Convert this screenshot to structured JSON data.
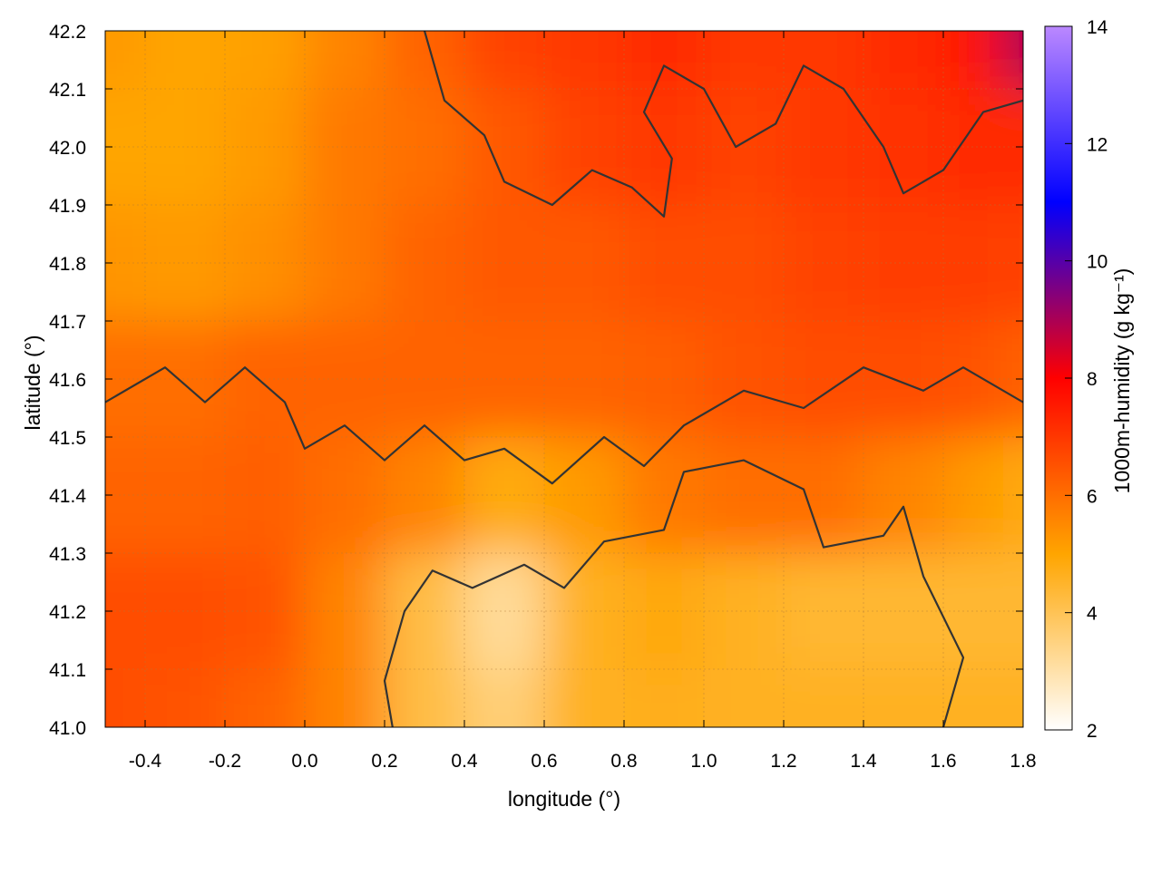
{
  "chart_data": {
    "type": "heatmap",
    "title": "",
    "xlabel": "longitude (°)",
    "ylabel": "latitude (°)",
    "colorbar_label": "1000m-humidity (g kg⁻¹)",
    "xlim": [
      -0.5,
      1.8
    ],
    "ylim": [
      41.0,
      42.2
    ],
    "zlim": [
      2,
      14
    ],
    "x_ticks": [
      -0.4,
      -0.2,
      0.0,
      0.2,
      0.4,
      0.6,
      0.8,
      1.0,
      1.2,
      1.4,
      1.6,
      1.8
    ],
    "x_tick_labels": [
      "-0.4",
      "-0.2",
      "0.0",
      "0.2",
      "0.4",
      "0.6",
      "0.8",
      "1.0",
      "1.2",
      "1.4",
      "1.6",
      "1.8"
    ],
    "y_ticks": [
      41.0,
      41.1,
      41.2,
      41.3,
      41.4,
      41.5,
      41.6,
      41.7,
      41.8,
      41.9,
      42.0,
      42.1,
      42.2
    ],
    "y_tick_labels": [
      "41.0",
      "41.1",
      "41.2",
      "41.3",
      "41.4",
      "41.5",
      "41.6",
      "41.7",
      "41.8",
      "41.9",
      "42.0",
      "42.1",
      "42.2"
    ],
    "colorbar_ticks": [
      2,
      4,
      6,
      8,
      10,
      12,
      14
    ],
    "colorbar_tick_labels": [
      "2",
      "4",
      "6",
      "8",
      "10",
      "12",
      "14"
    ],
    "colormap": [
      "#ffffff",
      "#ffa500",
      "#ff0000",
      "#0000ff",
      "#bb88ff"
    ],
    "contour_color": "#333333",
    "grid": true,
    "field_samples": {
      "x": [
        -0.5,
        -0.3,
        -0.1,
        0.1,
        0.3,
        0.5,
        0.7,
        0.9,
        1.1,
        1.3,
        1.5,
        1.7,
        1.8
      ],
      "y": [
        42.2,
        42.0,
        41.8,
        41.6,
        41.4,
        41.2,
        41.0
      ],
      "z": [
        [
          5.2,
          5.0,
          5.1,
          5.6,
          6.2,
          6.8,
          7.0,
          7.2,
          7.0,
          7.0,
          7.2,
          7.6,
          9.0
        ],
        [
          5.0,
          5.0,
          5.2,
          5.8,
          6.0,
          6.4,
          6.8,
          7.0,
          6.8,
          7.0,
          7.1,
          7.2,
          7.2
        ],
        [
          5.3,
          5.2,
          5.4,
          5.8,
          6.2,
          6.4,
          6.4,
          6.6,
          6.6,
          6.8,
          6.9,
          6.9,
          6.8
        ],
        [
          6.0,
          6.0,
          6.2,
          6.2,
          6.2,
          6.2,
          6.2,
          6.3,
          6.5,
          6.6,
          6.6,
          6.5,
          6.2
        ],
        [
          6.2,
          6.2,
          6.3,
          6.0,
          5.6,
          4.8,
          5.2,
          5.8,
          6.0,
          6.0,
          5.6,
          5.2,
          4.8
        ],
        [
          6.6,
          6.6,
          6.5,
          5.6,
          4.2,
          3.2,
          4.6,
          4.9,
          4.6,
          4.4,
          4.4,
          4.4,
          4.4
        ],
        [
          6.6,
          6.5,
          6.2,
          5.6,
          4.2,
          3.6,
          4.6,
          4.7,
          4.6,
          4.6,
          4.6,
          4.6,
          4.6
        ]
      ]
    },
    "contour_levels": [
      {
        "level": 5,
        "path": [
          [
            1.6,
            41.0
          ],
          [
            1.65,
            41.12
          ],
          [
            1.55,
            41.26
          ],
          [
            1.5,
            41.38
          ],
          [
            1.45,
            41.33
          ],
          [
            1.3,
            41.31
          ],
          [
            1.25,
            41.41
          ],
          [
            1.1,
            41.46
          ],
          [
            0.95,
            41.44
          ],
          [
            0.9,
            41.34
          ],
          [
            0.75,
            41.32
          ],
          [
            0.65,
            41.24
          ],
          [
            0.55,
            41.28
          ],
          [
            0.42,
            41.24
          ],
          [
            0.32,
            41.27
          ],
          [
            0.25,
            41.2
          ],
          [
            0.2,
            41.08
          ],
          [
            0.22,
            41.0
          ]
        ]
      },
      {
        "level": 6,
        "path": [
          [
            -0.5,
            41.56
          ],
          [
            -0.35,
            41.62
          ],
          [
            -0.25,
            41.56
          ],
          [
            -0.15,
            41.62
          ],
          [
            -0.05,
            41.56
          ],
          [
            0.0,
            41.48
          ],
          [
            0.1,
            41.52
          ],
          [
            0.2,
            41.46
          ],
          [
            0.3,
            41.52
          ],
          [
            0.4,
            41.46
          ],
          [
            0.5,
            41.48
          ],
          [
            0.62,
            41.42
          ],
          [
            0.75,
            41.5
          ],
          [
            0.85,
            41.45
          ],
          [
            0.95,
            41.52
          ],
          [
            1.1,
            41.58
          ],
          [
            1.25,
            41.55
          ],
          [
            1.4,
            41.62
          ],
          [
            1.55,
            41.58
          ],
          [
            1.65,
            41.62
          ],
          [
            1.8,
            41.56
          ]
        ]
      },
      {
        "level": 7,
        "path": [
          [
            0.3,
            42.2
          ],
          [
            0.35,
            42.08
          ],
          [
            0.45,
            42.02
          ],
          [
            0.5,
            41.94
          ],
          [
            0.62,
            41.9
          ],
          [
            0.72,
            41.96
          ],
          [
            0.82,
            41.93
          ],
          [
            0.9,
            41.88
          ],
          [
            0.92,
            41.98
          ],
          [
            0.85,
            42.06
          ],
          [
            0.9,
            42.14
          ],
          [
            1.0,
            42.1
          ],
          [
            1.08,
            42.0
          ],
          [
            1.18,
            42.04
          ],
          [
            1.25,
            42.14
          ],
          [
            1.35,
            42.1
          ],
          [
            1.45,
            42.0
          ],
          [
            1.5,
            41.92
          ],
          [
            1.6,
            41.96
          ],
          [
            1.7,
            42.06
          ],
          [
            1.8,
            42.08
          ]
        ]
      }
    ]
  }
}
